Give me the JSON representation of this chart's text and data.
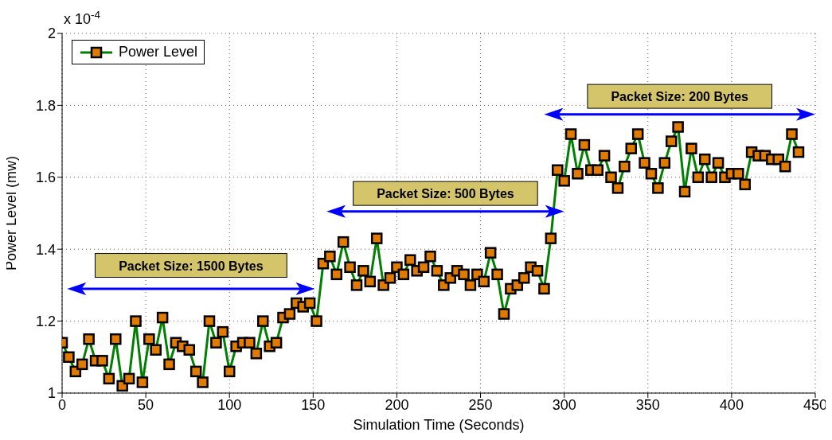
{
  "chart_data": {
    "type": "line",
    "xlabel": "Simulation Time (Seconds)",
    "ylabel": "Power Level (mw)",
    "annotations": [
      "x 10$^{-4}$",
      "Packet Size:  1500 Bytes",
      "Packet Size:  500 Bytes",
      "Packet Size:  200 Bytes"
    ],
    "x": [
      0,
      4,
      8,
      12,
      16,
      20,
      24,
      28,
      32,
      36,
      40,
      44,
      48,
      52,
      56,
      60,
      64,
      68,
      72,
      76,
      80,
      84,
      88,
      92,
      96,
      100,
      104,
      108,
      112,
      116,
      120,
      124,
      128,
      132,
      136,
      140,
      144,
      148,
      152,
      156,
      160,
      164,
      168,
      172,
      176,
      180,
      184,
      188,
      192,
      196,
      200,
      204,
      208,
      212,
      216,
      220,
      224,
      228,
      232,
      236,
      240,
      244,
      248,
      252,
      256,
      260,
      264,
      268,
      272,
      276,
      280,
      284,
      288,
      292,
      296,
      300,
      304,
      308,
      312,
      316,
      320,
      324,
      328,
      332,
      336,
      340,
      344,
      348,
      352,
      356,
      360,
      364,
      368,
      372,
      376,
      380,
      384,
      388,
      392,
      396,
      400,
      404,
      408,
      412,
      416,
      420,
      424,
      428,
      432,
      436,
      440
    ],
    "series": [
      {
        "name": "Power Level",
        "color": "#008000",
        "values": [
          1.14,
          1.1,
          1.06,
          1.08,
          1.15,
          1.09,
          1.09,
          1.04,
          1.15,
          1.02,
          1.04,
          1.2,
          1.03,
          1.15,
          1.12,
          1.21,
          1.08,
          1.14,
          1.13,
          1.12,
          1.06,
          1.03,
          1.2,
          1.14,
          1.17,
          1.06,
          1.13,
          1.14,
          1.14,
          1.11,
          1.2,
          1.13,
          1.14,
          1.21,
          1.22,
          1.25,
          1.24,
          1.25,
          1.2,
          1.36,
          1.38,
          1.33,
          1.42,
          1.35,
          1.3,
          1.34,
          1.31,
          1.43,
          1.3,
          1.32,
          1.35,
          1.33,
          1.37,
          1.34,
          1.35,
          1.38,
          1.34,
          1.3,
          1.32,
          1.34,
          1.33,
          1.3,
          1.33,
          1.31,
          1.39,
          1.33,
          1.22,
          1.29,
          1.3,
          1.32,
          1.35,
          1.34,
          1.29,
          1.43,
          1.62,
          1.59,
          1.72,
          1.61,
          1.69,
          1.62,
          1.62,
          1.66,
          1.6,
          1.57,
          1.63,
          1.68,
          1.72,
          1.64,
          1.61,
          1.57,
          1.64,
          1.7,
          1.74,
          1.56,
          1.68,
          1.6,
          1.65,
          1.6,
          1.64,
          1.6,
          1.61,
          1.61,
          1.58,
          1.67,
          1.66,
          1.66,
          1.65,
          1.65,
          1.63,
          1.72,
          1.67
        ]
      }
    ],
    "xlim": [
      0,
      450
    ],
    "xticks": [
      0,
      50,
      100,
      150,
      200,
      250,
      300,
      350,
      400,
      450
    ],
    "ylim": [
      1,
      2
    ],
    "yticks": [
      1,
      1.2,
      1.4,
      1.6,
      1.8,
      2
    ],
    "grid": true,
    "legend": "top left",
    "marker": "square",
    "line_style": "solid"
  }
}
